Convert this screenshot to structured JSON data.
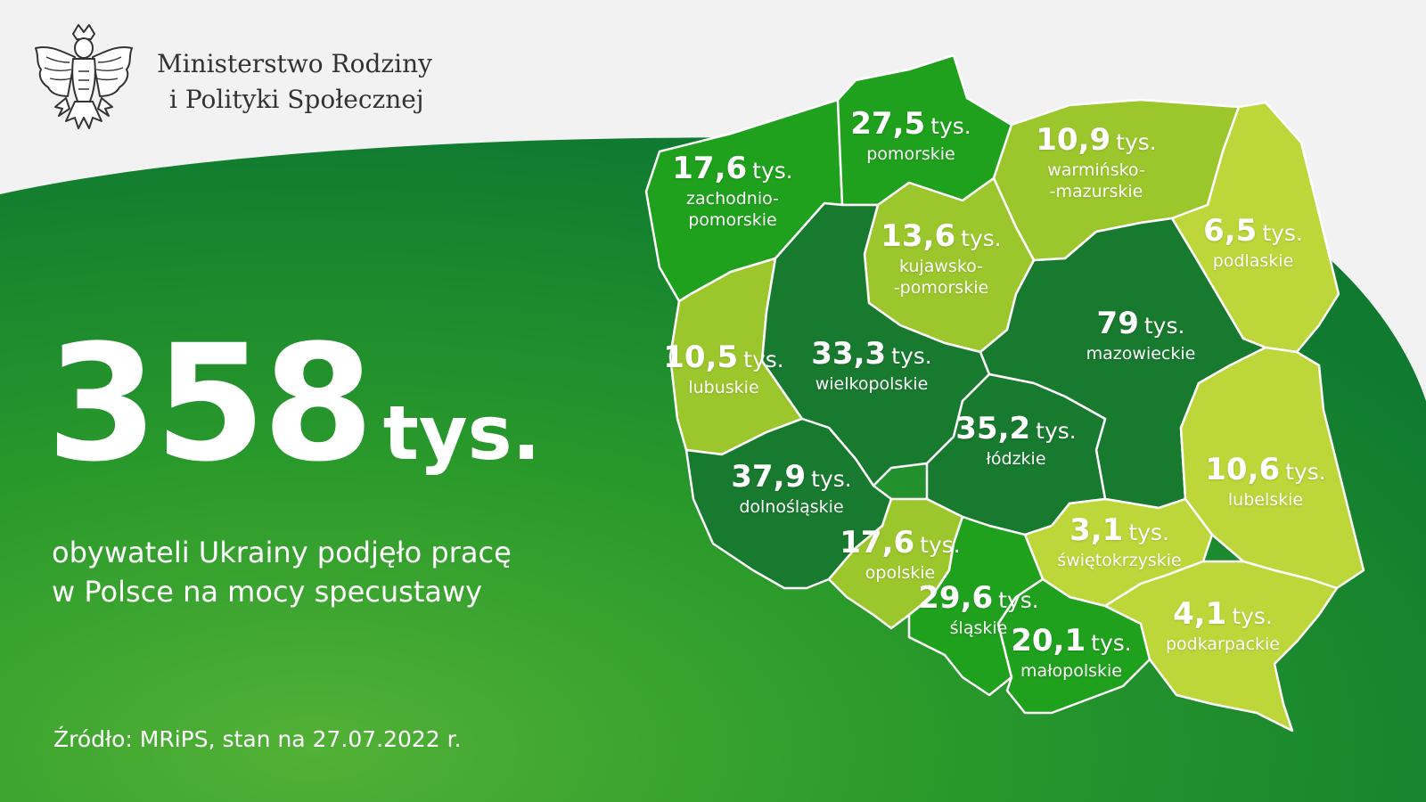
{
  "header": {
    "ministry_line1": "Ministerstwo Rodziny",
    "ministry_line2": "i Polityki Społecznej",
    "emblem_icon": "white-eagle-emblem-icon"
  },
  "headline": {
    "value": "358",
    "unit": "tys."
  },
  "subtitle": {
    "line1": "obywateli Ukrainy podjęło pracę",
    "line2": "w Polsce na mocy specustawy"
  },
  "source": "Źródło: MRiPS, stan na 27.07.2022 r.",
  "colors": {
    "background_light": "#f2f2f2",
    "green_dark": "#0f7a30",
    "green_mid": "#1e9a24",
    "green_light": "#48ad34",
    "region_darkest": "#187a2f",
    "region_medium": "#1fa11d",
    "region_light": "#9cc72c",
    "region_lightest": "#bdd63a",
    "text_white": "#ffffff"
  },
  "regions": [
    {
      "id": "zachodniopomorskie",
      "value": "17,6",
      "unit": "tys.",
      "name_lines": [
        "zachodnio-",
        "pomorskie"
      ],
      "color": "#1fa11d"
    },
    {
      "id": "pomorskie",
      "value": "27,5",
      "unit": "tys.",
      "name_lines": [
        "pomorskie"
      ],
      "color": "#1fa11d"
    },
    {
      "id": "warminsko-mazurskie",
      "value": "10,9",
      "unit": "tys.",
      "name_lines": [
        "warmińsko-",
        "-mazurskie"
      ],
      "color": "#9cc72c"
    },
    {
      "id": "podlaskie",
      "value": "6,5",
      "unit": "tys.",
      "name_lines": [
        "podlaskie"
      ],
      "color": "#bdd63a"
    },
    {
      "id": "kujawsko-pomorskie",
      "value": "13,6",
      "unit": "tys.",
      "name_lines": [
        "kujawsko-",
        "-pomorskie"
      ],
      "color": "#9cc72c"
    },
    {
      "id": "lubuskie",
      "value": "10,5",
      "unit": "tys.",
      "name_lines": [
        "lubuskie"
      ],
      "color": "#9cc72c"
    },
    {
      "id": "wielkopolskie",
      "value": "33,3",
      "unit": "tys.",
      "name_lines": [
        "wielkopolskie"
      ],
      "color": "#187a2f"
    },
    {
      "id": "mazowieckie",
      "value": "79",
      "unit": "tys.",
      "name_lines": [
        "mazowieckie"
      ],
      "color": "#187a2f"
    },
    {
      "id": "lodzkie",
      "value": "35,2",
      "unit": "tys.",
      "name_lines": [
        "łódzkie"
      ],
      "color": "#187a2f"
    },
    {
      "id": "dolnoslaskie",
      "value": "37,9",
      "unit": "tys.",
      "name_lines": [
        "dolnośląskie"
      ],
      "color": "#187a2f"
    },
    {
      "id": "lubelskie",
      "value": "10,6",
      "unit": "tys.",
      "name_lines": [
        "lubelskie"
      ],
      "color": "#bdd63a"
    },
    {
      "id": "opolskie",
      "value": "17,6",
      "unit": "tys.",
      "name_lines": [
        "opolskie"
      ],
      "color": "#9cc72c"
    },
    {
      "id": "swietokrzyskie",
      "value": "3,1",
      "unit": "tys.",
      "name_lines": [
        "świętokrzyskie"
      ],
      "color": "#bdd63a"
    },
    {
      "id": "slaskie",
      "value": "29,6",
      "unit": "tys.",
      "name_lines": [
        "śląskie"
      ],
      "color": "#1fa11d"
    },
    {
      "id": "malopolskie",
      "value": "20,1",
      "unit": "tys.",
      "name_lines": [
        "małopolskie"
      ],
      "color": "#1fa11d"
    },
    {
      "id": "podkarpackie",
      "value": "4,1",
      "unit": "tys.",
      "name_lines": [
        "podkarpackie"
      ],
      "color": "#bdd63a"
    }
  ]
}
